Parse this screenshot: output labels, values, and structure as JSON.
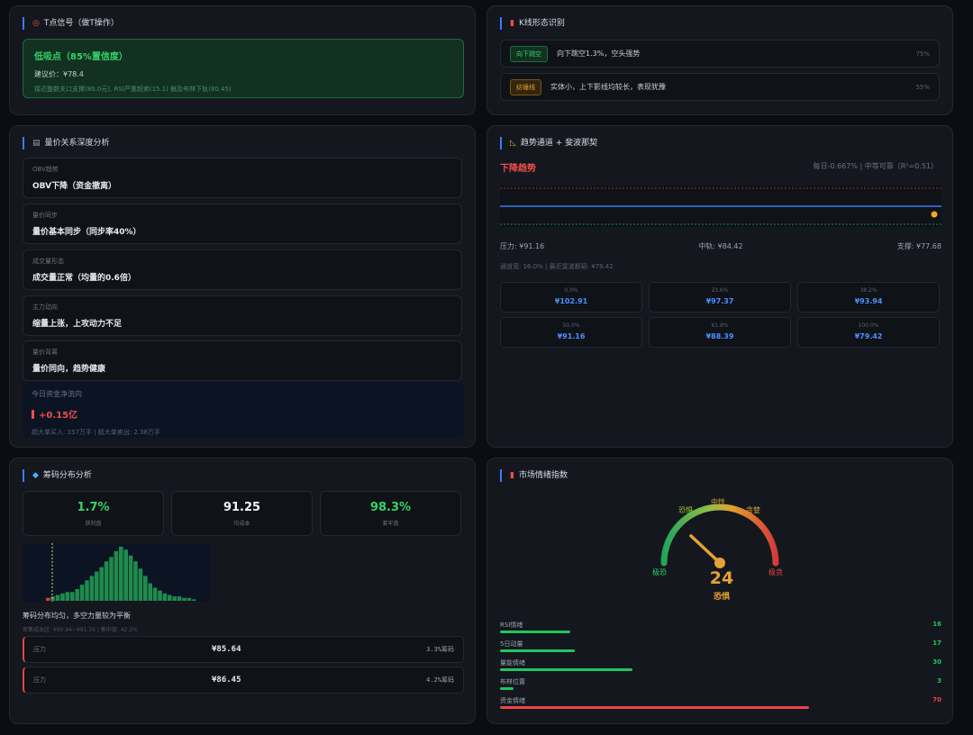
{
  "t_signal": {
    "title": "T点信号（做T操作）",
    "headline": "低吸点（85%置信度）",
    "suggest_price": "建议价：¥78.4",
    "detail": "接近整数关口支撑(80.0元), RSI严重超卖(15.1) 触及布林下轨(80.45)"
  },
  "k_pattern": {
    "title": "K线形态识别",
    "items": [
      {
        "tag": "向下跳空",
        "desc": "向下跳空1.3%，空头强势",
        "pct": "75%",
        "style": "down"
      },
      {
        "tag": "纺锤线",
        "desc": "实体小，上下影线均较长，表现犹豫",
        "pct": "55%",
        "style": "guard"
      }
    ]
  },
  "volume_price": {
    "title": "量价关系深度分析",
    "items": [
      {
        "label": "OBV趋势",
        "value": "OBV下降（资金撤离）"
      },
      {
        "label": "量价同步",
        "value": "量价基本同步（同步率40%）"
      },
      {
        "label": "成交量形态",
        "value": "成交量正常（均量的0.6倍）"
      },
      {
        "label": "主力动向",
        "value": "缩量上涨，上攻动力不足"
      },
      {
        "label": "量价背离",
        "value": "量价同向，趋势健康"
      }
    ],
    "flow": {
      "title": "今日资金净流向",
      "value": "+0.15亿",
      "sub": "超大单买入: 157万手 | 超大单卖出: 2.38万手"
    }
  },
  "trend": {
    "title": "趋势通道 + 斐波那契",
    "direction": "下降趋势",
    "meta": "每日-0.667% | 中等可靠（R²=0.51）",
    "resistance": "压力: ¥91.16",
    "middle": "中轨: ¥84.42",
    "support": "支撑: ¥77.68",
    "note": "通道宽: 16.0% | 最近斐波那契: ¥79.42",
    "fib": [
      {
        "pct": "0.0%",
        "price": "¥102.91"
      },
      {
        "pct": "23.6%",
        "price": "¥97.37"
      },
      {
        "pct": "38.2%",
        "price": "¥93.94"
      },
      {
        "pct": "50.0%",
        "price": "¥91.16"
      },
      {
        "pct": "61.8%",
        "price": "¥88.39"
      },
      {
        "pct": "100.0%",
        "price": "¥79.42"
      }
    ]
  },
  "chips": {
    "title": "筹码分布分析",
    "stats": [
      {
        "value": "1.7%",
        "label": "获利盘",
        "color": "#32d46b"
      },
      {
        "value": "91.25",
        "label": "均成本",
        "color": "#f3f4f6"
      },
      {
        "value": "98.3%",
        "label": "套牢盘",
        "color": "#32d46b"
      }
    ],
    "histogram": [
      2,
      3,
      4,
      5,
      6,
      6,
      8,
      11,
      14,
      17,
      20,
      23,
      27,
      30,
      34,
      37,
      35,
      31,
      27,
      22,
      17,
      12,
      9,
      7,
      5,
      4,
      3,
      3,
      2,
      2,
      1
    ],
    "note": "筹码分布均匀，多空力量较为平衡",
    "sub": "密集成本区: ¥90.94~¥91.76 | 集中度: 42.2%",
    "pressure": [
      {
        "label": "压力",
        "price": "¥85.64",
        "pct": "3.3%筹码"
      },
      {
        "label": "压力",
        "price": "¥86.45",
        "pct": "4.2%筹码"
      }
    ]
  },
  "sentiment": {
    "title": "市场情绪指数",
    "score": "24",
    "level": "恐惧",
    "gauge_labels": {
      "extreme_fear": "极恐",
      "fear": "恐惧",
      "neutral": "中性",
      "greed": "贪婪",
      "extreme_greed": "极贪"
    },
    "gauge_value": 24,
    "items": [
      {
        "name": "RSI情绪",
        "value": 16,
        "color": "#22c55e"
      },
      {
        "name": "5日动量",
        "value": 17,
        "color": "#22c55e"
      },
      {
        "name": "量能情绪",
        "value": 30,
        "color": "#22c55e"
      },
      {
        "name": "布林位置",
        "value": 3,
        "color": "#22c55e"
      },
      {
        "name": "资金情绪",
        "value": 70,
        "color": "#ef4444"
      }
    ]
  }
}
